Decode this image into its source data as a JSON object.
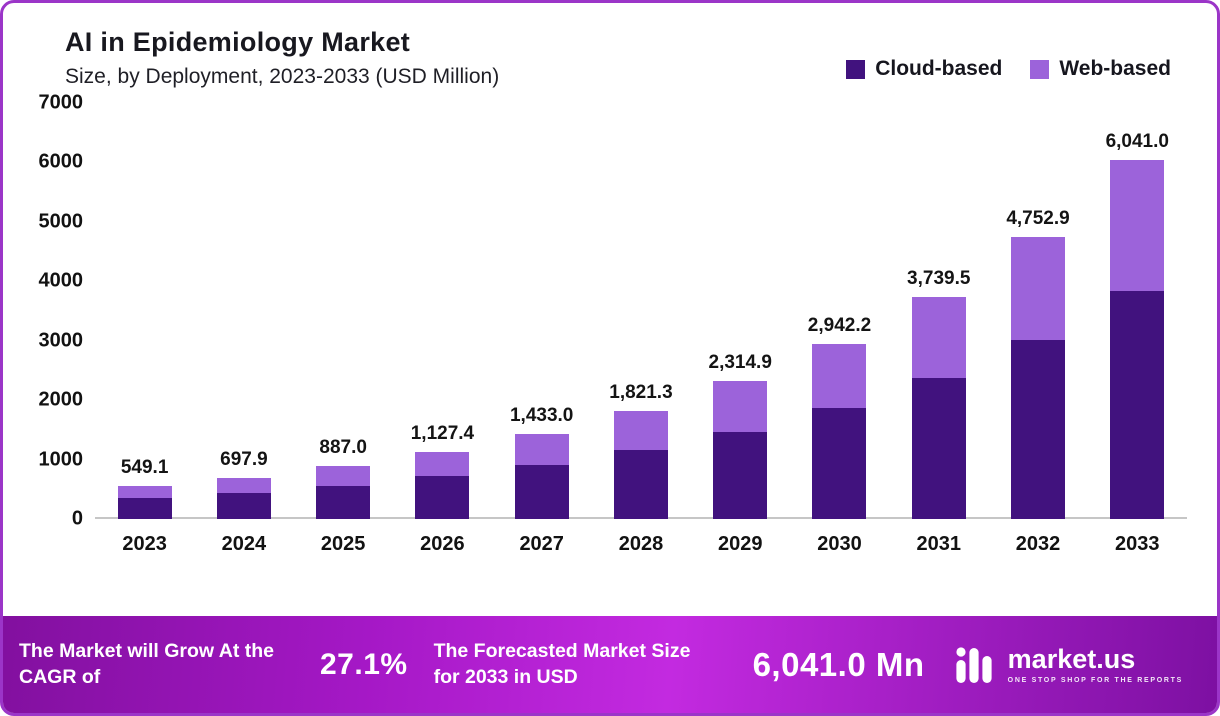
{
  "header": {
    "title": "AI in Epidemiology Market",
    "subtitle": "Size, by Deployment, 2023-2033 (USD Million)"
  },
  "legend": [
    {
      "label": "Cloud-based",
      "color": "#41127e"
    },
    {
      "label": "Web-based",
      "color": "#9c63da"
    }
  ],
  "chart_data": {
    "type": "bar",
    "stacked": true,
    "title": "AI in Epidemiology Market Size, by Deployment, 2023-2033 (USD Million)",
    "categories": [
      "2023",
      "2024",
      "2025",
      "2026",
      "2027",
      "2028",
      "2029",
      "2030",
      "2031",
      "2032",
      "2033"
    ],
    "series": [
      {
        "name": "Cloud-based",
        "color": "#41127e",
        "values": [
          348.7,
          443.2,
          563.2,
          715.9,
          910.0,
          1156.5,
          1470.0,
          1868.3,
          2374.6,
          3018.1,
          3836.0
        ]
      },
      {
        "name": "Web-based",
        "color": "#9c63da",
        "values": [
          200.4,
          254.7,
          323.8,
          411.5,
          523.0,
          664.8,
          844.9,
          1073.9,
          1364.9,
          1734.8,
          2205.0
        ]
      }
    ],
    "totals": [
      549.1,
      697.9,
      887.0,
      1127.4,
      1433.0,
      1821.3,
      2314.9,
      2942.2,
      3739.5,
      4752.9,
      6041.0
    ],
    "total_labels": [
      "549.1",
      "697.9",
      "887.0",
      "1,127.4",
      "1,433.0",
      "1,821.3",
      "2,314.9",
      "2,942.2",
      "3,739.5",
      "4,752.9",
      "6,041.0"
    ],
    "xlabel": "",
    "ylabel": "",
    "ylim": [
      0,
      7000
    ],
    "yticks": [
      0,
      1000,
      2000,
      3000,
      4000,
      5000,
      6000,
      7000
    ],
    "grid": false,
    "legend_position": "top-right"
  },
  "banner": {
    "cagr_text": "The Market will Grow At the CAGR of",
    "cagr_value": "27.1%",
    "forecast_text": "The Forecasted Market Size for 2033 in USD",
    "forecast_value": "6,041.0 Mn",
    "logo_text": "market.us",
    "logo_tagline": "ONE STOP SHOP FOR THE REPORTS"
  },
  "colors": {
    "cloud": "#41127e",
    "web": "#9c63da",
    "card_border": "#9b35c8",
    "banner_gradient": [
      "#82109f",
      "#a518c6",
      "#c32ae0",
      "#7d10a2"
    ],
    "value_label": "#141414",
    "baseline": "#c6c6c6"
  }
}
